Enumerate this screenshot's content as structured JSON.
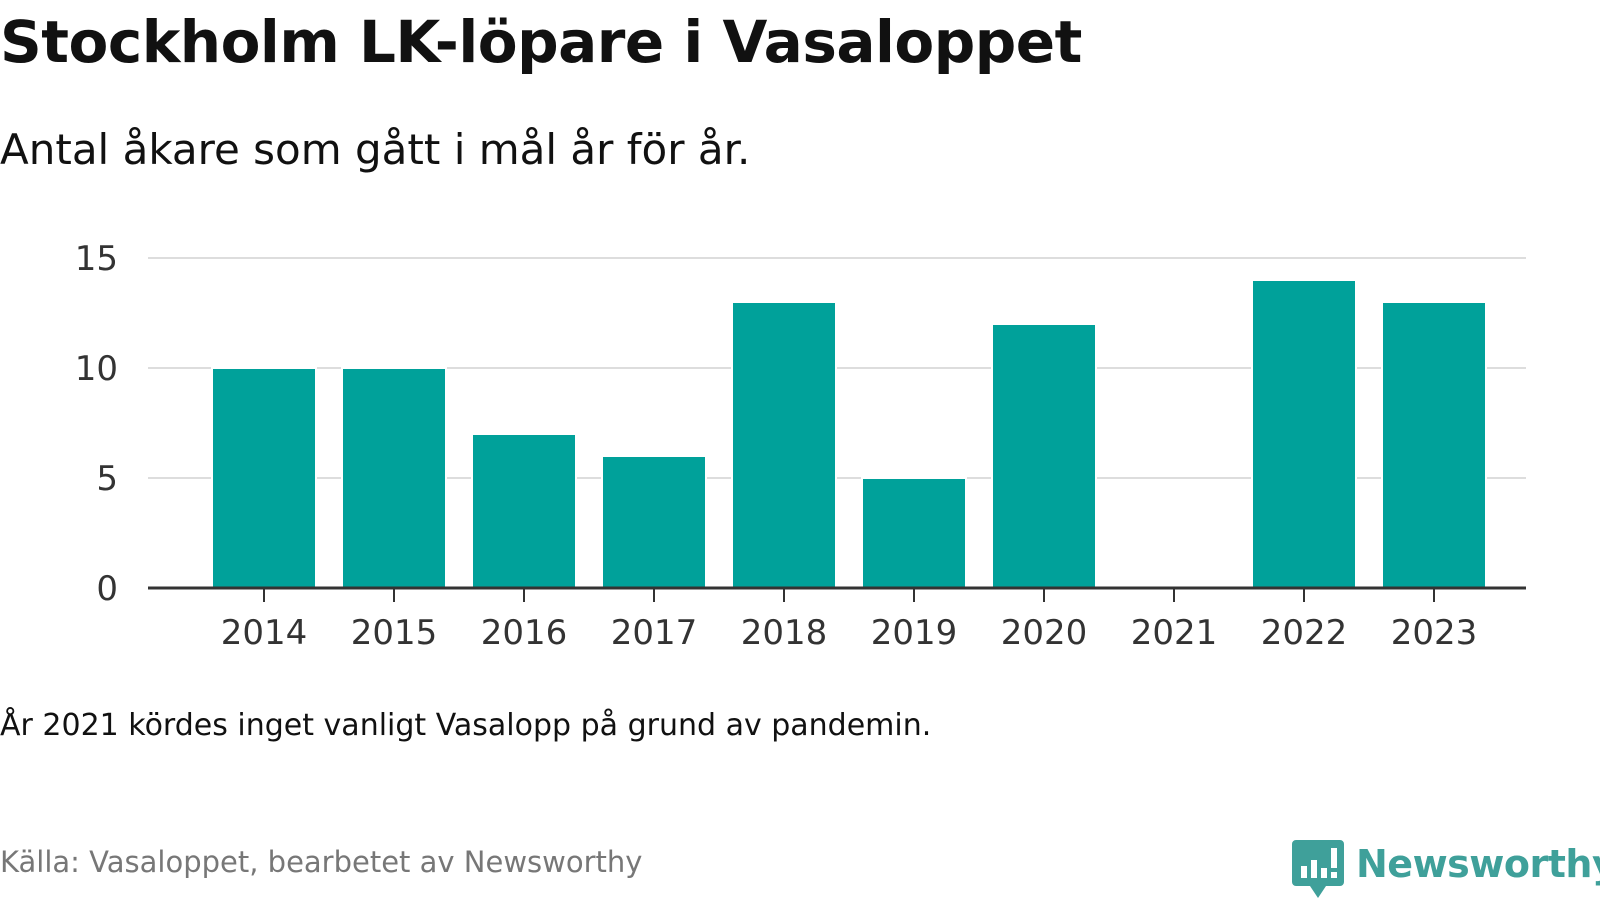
{
  "title": "Stockholm LK-löpare i Vasaloppet",
  "subtitle": "Antal åkare som gått i mål år för år.",
  "note": "År 2021 kördes inget vanligt Vasalopp på grund av pandemin.",
  "source": "Källa: Vasaloppet, bearbetet av Newsworthy",
  "brand": {
    "name": "Newsworthy",
    "icon": "newsworthy-logo-icon",
    "color": "#3fa09a"
  },
  "colors": {
    "bar": "#00a19a",
    "grid": "#dddddd",
    "axis": "#333333",
    "tick_text": "#333333"
  },
  "chart_data": {
    "type": "bar",
    "title": "Stockholm LK-löpare i Vasaloppet",
    "subtitle": "Antal åkare som gått i mål år för år.",
    "xlabel": "",
    "ylabel": "",
    "categories": [
      "2014",
      "2015",
      "2016",
      "2017",
      "2018",
      "2019",
      "2020",
      "2021",
      "2022",
      "2023"
    ],
    "values": [
      10,
      10,
      7,
      6,
      13,
      5,
      12,
      0,
      14,
      13
    ],
    "ylim": [
      0,
      15
    ],
    "yticks": [
      "0",
      "5",
      "10",
      "15"
    ],
    "grid": true,
    "legend": "none"
  }
}
